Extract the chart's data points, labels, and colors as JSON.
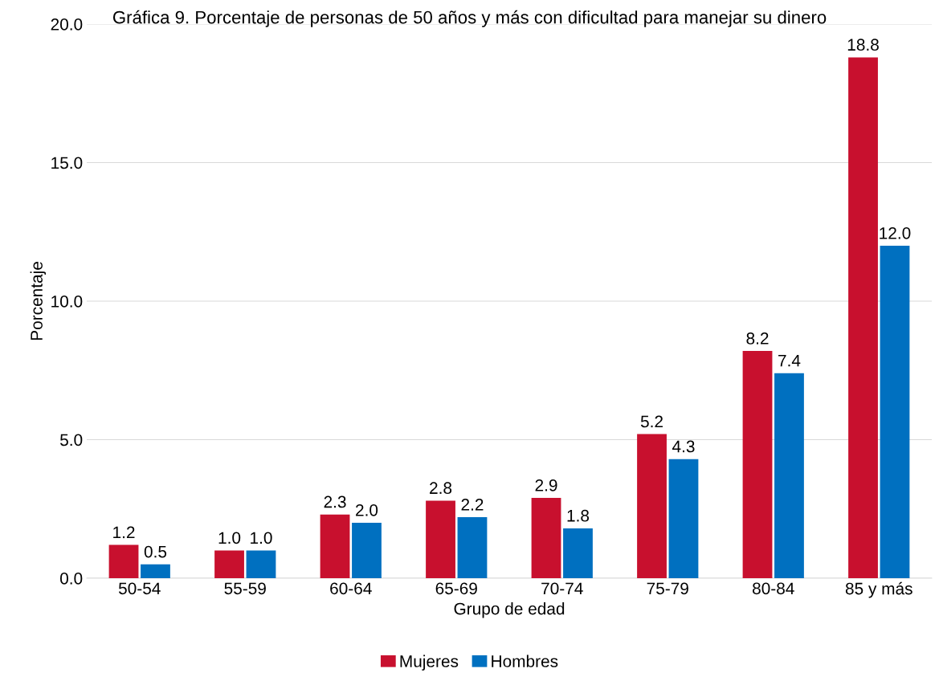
{
  "chart_data": {
    "type": "bar",
    "title": "Gráfica 9. Porcentaje de personas de 50 años y más con dificultad para manejar su dinero",
    "xlabel": "Grupo de edad",
    "ylabel": "Porcentaje",
    "categories": [
      "50-54",
      "55-59",
      "60-64",
      "65-69",
      "70-74",
      "75-79",
      "80-84",
      "85 y más"
    ],
    "series": [
      {
        "name": "Mujeres",
        "color": "#c8102e",
        "values": [
          1.2,
          1.0,
          2.3,
          2.8,
          2.9,
          5.2,
          8.2,
          18.8
        ],
        "value_labels": [
          "1.2",
          "1.0",
          "2.3",
          "2.8",
          "2.9",
          "5.2",
          "8.2",
          "18.8"
        ]
      },
      {
        "name": "Hombres",
        "color": "#0070c0",
        "values": [
          0.5,
          1.0,
          2.0,
          2.2,
          1.8,
          4.3,
          7.4,
          12.0
        ],
        "value_labels": [
          "0.5",
          "1.0",
          "2.0",
          "2.2",
          "1.8",
          "4.3",
          "7.4",
          "12.0"
        ]
      }
    ],
    "ylim": [
      0,
      20
    ],
    "yticks": [
      {
        "value": 0,
        "label": "0.0"
      },
      {
        "value": 5,
        "label": "5.0"
      },
      {
        "value": 10,
        "label": "10.0"
      },
      {
        "value": 15,
        "label": "15.0"
      },
      {
        "value": 20,
        "label": "20.0"
      }
    ],
    "grid": "y",
    "legend": "bottom"
  }
}
